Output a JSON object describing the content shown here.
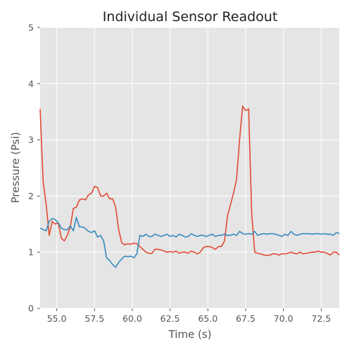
{
  "chart_data": {
    "type": "line",
    "title": "Individual Sensor Readout",
    "xlabel": "Time (s)",
    "ylabel": "Pressure (Psi)",
    "xlim": [
      53.9,
      73.7
    ],
    "ylim": [
      0,
      5
    ],
    "xticks": [
      55.0,
      57.5,
      60.0,
      62.5,
      65.0,
      67.5,
      70.0,
      72.5
    ],
    "xtick_labels": [
      "55.0",
      "57.5",
      "60.0",
      "62.5",
      "65.0",
      "67.5",
      "70.0",
      "72.5"
    ],
    "yticks": [
      0,
      1,
      2,
      3,
      4,
      5
    ],
    "ytick_labels": [
      "0",
      "1",
      "2",
      "3",
      "4",
      "5"
    ],
    "grid": true,
    "background": "#e5e5e5",
    "series": [
      {
        "color": "#e24a33",
        "x": [
          53.9,
          54.1,
          54.3,
          54.5,
          54.7,
          54.9,
          55.1,
          55.3,
          55.5,
          55.7,
          55.9,
          56.1,
          56.3,
          56.5,
          56.7,
          56.9,
          57.1,
          57.3,
          57.5,
          57.7,
          57.9,
          58.1,
          58.3,
          58.5,
          58.7,
          58.9,
          59.1,
          59.3,
          59.5,
          59.7,
          59.9,
          60.1,
          60.3,
          60.5,
          60.7,
          60.9,
          61.1,
          61.3,
          61.5,
          61.7,
          61.9,
          62.1,
          62.3,
          62.5,
          62.7,
          62.9,
          63.1,
          63.3,
          63.5,
          63.7,
          63.9,
          64.1,
          64.3,
          64.5,
          64.7,
          64.9,
          65.1,
          65.3,
          65.5,
          65.7,
          65.9,
          66.1,
          66.3,
          66.5,
          66.7,
          66.9,
          67.1,
          67.3,
          67.5,
          67.7,
          67.9,
          68.1,
          68.3,
          68.5,
          68.7,
          68.9,
          69.1,
          69.3,
          69.5,
          69.7,
          69.9,
          70.1,
          70.3,
          70.5,
          70.7,
          70.9,
          71.1,
          71.3,
          71.5,
          71.7,
          71.9,
          72.1,
          72.3,
          72.5,
          72.7,
          72.9,
          73.1,
          73.3,
          73.5,
          73.7
        ],
        "values": [
          3.55,
          2.25,
          1.85,
          1.3,
          1.55,
          1.5,
          1.52,
          1.25,
          1.2,
          1.3,
          1.45,
          1.78,
          1.8,
          1.93,
          1.95,
          1.93,
          2.02,
          2.05,
          2.17,
          2.15,
          2.0,
          2.0,
          2.05,
          1.95,
          1.95,
          1.8,
          1.4,
          1.17,
          1.13,
          1.15,
          1.14,
          1.16,
          1.15,
          1.1,
          1.05,
          1.0,
          0.98,
          0.98,
          1.05,
          1.05,
          1.04,
          1.02,
          1.0,
          1.01,
          1.0,
          1.02,
          0.98,
          1.0,
          1.0,
          0.98,
          1.02,
          1.0,
          0.97,
          1.0,
          1.08,
          1.1,
          1.1,
          1.08,
          1.05,
          1.1,
          1.1,
          1.2,
          1.65,
          1.85,
          2.05,
          2.3,
          3.0,
          3.6,
          3.52,
          3.55,
          1.7,
          1.0,
          0.98,
          0.97,
          0.95,
          0.94,
          0.95,
          0.97,
          0.97,
          0.95,
          0.97,
          0.97,
          0.98,
          1.0,
          0.98,
          0.97,
          1.0,
          0.97,
          0.98,
          0.99,
          1.0,
          1.0,
          1.02,
          1.0,
          1.0,
          0.98,
          0.95,
          1.0,
          1.0,
          0.95
        ]
      },
      {
        "color": "#348abd",
        "x": [
          53.9,
          54.1,
          54.3,
          54.5,
          54.7,
          54.9,
          55.1,
          55.3,
          55.5,
          55.7,
          55.9,
          56.1,
          56.3,
          56.5,
          56.7,
          56.9,
          57.1,
          57.3,
          57.5,
          57.7,
          57.9,
          58.1,
          58.3,
          58.5,
          58.7,
          58.9,
          59.1,
          59.3,
          59.5,
          59.7,
          59.9,
          60.1,
          60.3,
          60.5,
          60.7,
          60.9,
          61.1,
          61.3,
          61.5,
          61.7,
          61.9,
          62.1,
          62.3,
          62.5,
          62.7,
          62.9,
          63.1,
          63.3,
          63.5,
          63.7,
          63.9,
          64.1,
          64.3,
          64.5,
          64.7,
          64.9,
          65.1,
          65.3,
          65.5,
          65.7,
          65.9,
          66.1,
          66.3,
          66.5,
          66.7,
          66.9,
          67.1,
          67.3,
          67.5,
          67.7,
          67.9,
          68.1,
          68.3,
          68.5,
          68.7,
          68.9,
          69.1,
          69.3,
          69.5,
          69.7,
          69.9,
          70.1,
          70.3,
          70.5,
          70.7,
          70.9,
          71.1,
          71.3,
          71.5,
          71.7,
          71.9,
          72.1,
          72.3,
          72.5,
          72.7,
          72.9,
          73.1,
          73.3,
          73.5,
          73.7
        ],
        "values": [
          1.43,
          1.4,
          1.38,
          1.55,
          1.6,
          1.58,
          1.52,
          1.43,
          1.4,
          1.4,
          1.47,
          1.38,
          1.62,
          1.45,
          1.45,
          1.42,
          1.37,
          1.35,
          1.38,
          1.27,
          1.3,
          1.2,
          0.9,
          0.85,
          0.78,
          0.73,
          0.82,
          0.88,
          0.93,
          0.92,
          0.93,
          0.9,
          0.97,
          1.3,
          1.28,
          1.32,
          1.28,
          1.28,
          1.32,
          1.3,
          1.28,
          1.3,
          1.32,
          1.28,
          1.3,
          1.27,
          1.32,
          1.3,
          1.27,
          1.28,
          1.33,
          1.3,
          1.28,
          1.3,
          1.3,
          1.28,
          1.3,
          1.32,
          1.28,
          1.3,
          1.3,
          1.32,
          1.3,
          1.3,
          1.32,
          1.3,
          1.37,
          1.33,
          1.32,
          1.33,
          1.32,
          1.37,
          1.3,
          1.32,
          1.33,
          1.32,
          1.33,
          1.33,
          1.32,
          1.3,
          1.28,
          1.32,
          1.3,
          1.37,
          1.32,
          1.3,
          1.32,
          1.33,
          1.33,
          1.33,
          1.32,
          1.33,
          1.33,
          1.32,
          1.33,
          1.32,
          1.32,
          1.3,
          1.35,
          1.33
        ]
      }
    ]
  }
}
